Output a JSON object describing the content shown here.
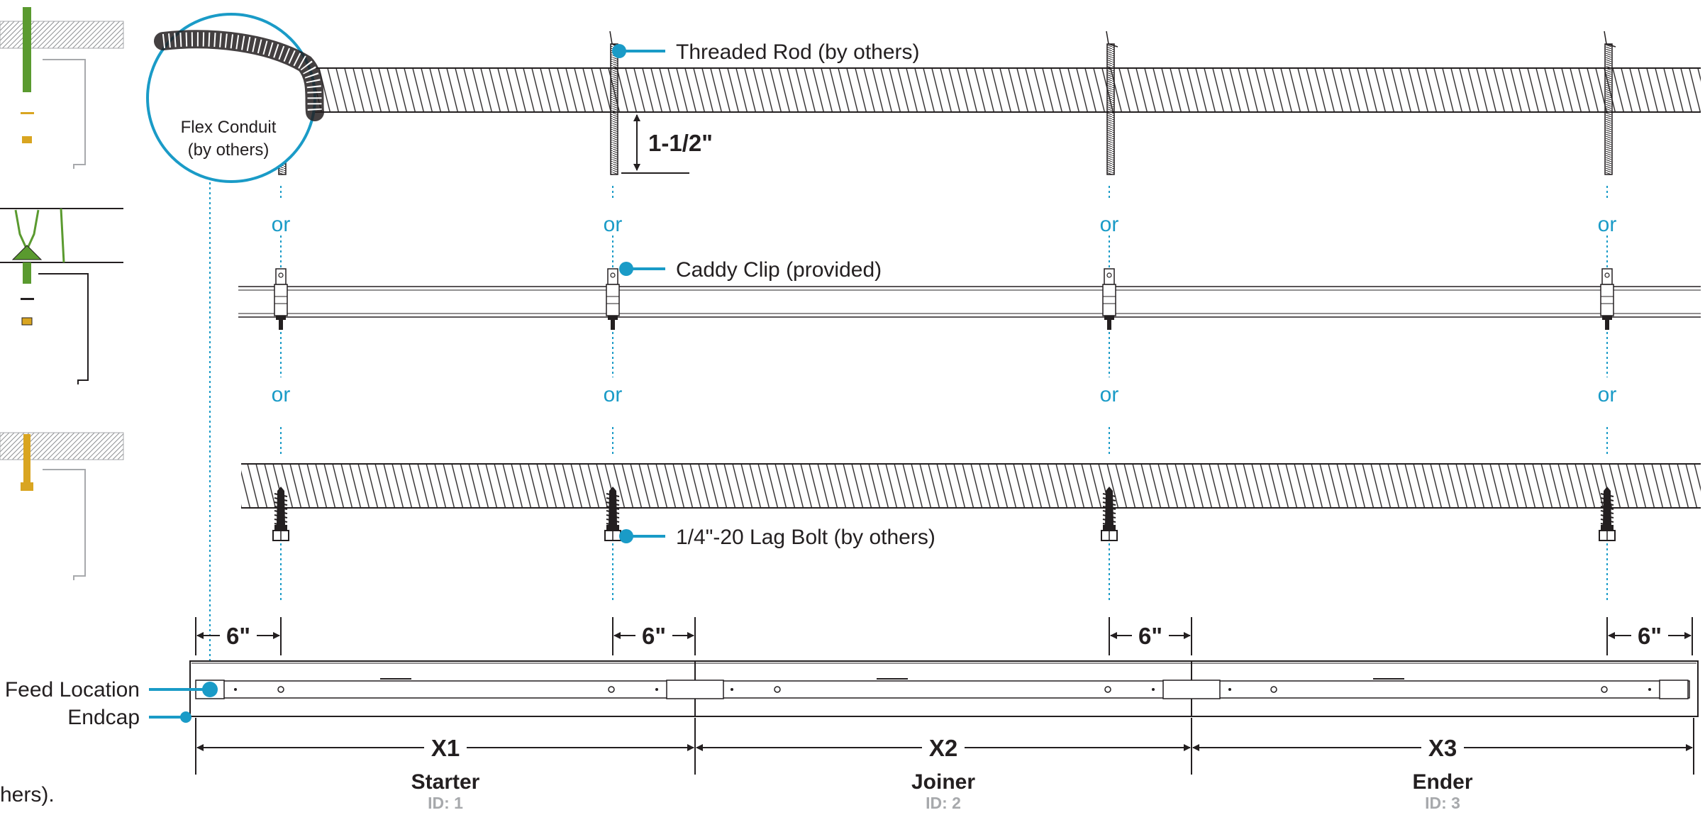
{
  "labels": {
    "threaded_rod": "Threaded Rod (by others)",
    "caddy_clip": "Caddy Clip (provided)",
    "lag_bolt": "1/4\"-20 Lag Bolt (by others)",
    "flex_conduit_line1": "Flex Conduit",
    "flex_conduit_line2": "(by others)",
    "rod_dimension": "1-1/2\"",
    "feed_location": "Feed Location",
    "endcap": "Endcap",
    "truncated_note": "hers).",
    "or": [
      "or",
      "or",
      "or",
      "or",
      "or",
      "or",
      "or",
      "or"
    ],
    "offsets": [
      "6\"",
      "6\"",
      "6\"",
      "6\""
    ]
  },
  "segments": [
    {
      "name": "X1",
      "type": "Starter",
      "id": "ID: 1"
    },
    {
      "name": "X2",
      "type": "Joiner",
      "id": "ID: 2"
    },
    {
      "name": "X3",
      "type": "Ender",
      "id": "ID: 3"
    }
  ],
  "colors": {
    "line": "#231f20",
    "accent": "#1a9bc7",
    "id_gray": "#a7a9ac",
    "rod_green": "#5a9a2f",
    "bolt_gold": "#d9a521",
    "ceiling_gray": "#a7a9ac"
  }
}
